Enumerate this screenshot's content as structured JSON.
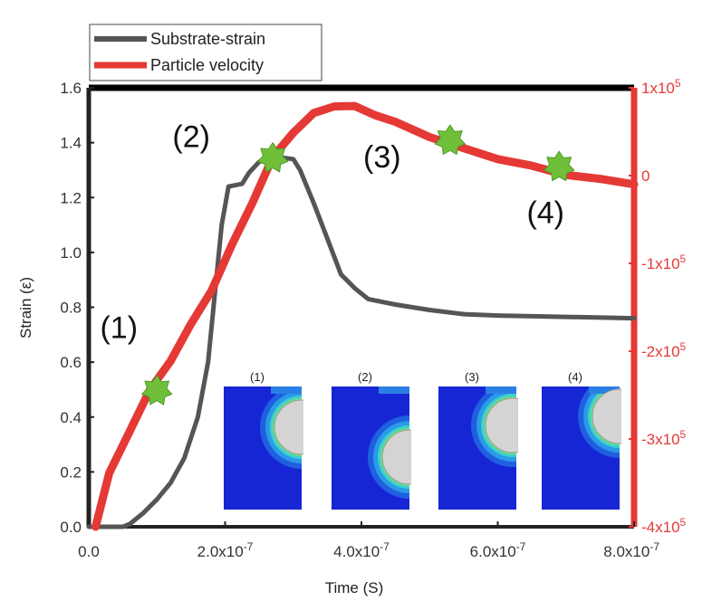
{
  "chart_data": {
    "type": "line",
    "xlabel": "Time (S)",
    "ylabel": "Strain (ε)",
    "xlim": [
      0,
      8e-07
    ],
    "ylim": [
      0,
      1.6
    ],
    "y2lim": [
      -400000,
      100000
    ],
    "x_ticks": [
      0,
      2e-07,
      4e-07,
      6e-07,
      8e-07
    ],
    "x_tick_labels": [
      {
        "mant": "0.0",
        "exp": ""
      },
      {
        "mant": "2.0x10",
        "exp": "-7"
      },
      {
        "mant": "4.0x10",
        "exp": "-7"
      },
      {
        "mant": "6.0x10",
        "exp": "-7"
      },
      {
        "mant": "8.0x10",
        "exp": "-7"
      }
    ],
    "y_ticks": [
      0,
      0.2,
      0.4,
      0.6,
      0.8,
      1.0,
      1.2,
      1.4,
      1.6
    ],
    "y_tick_labels": [
      "0.0",
      "0.2",
      "0.4",
      "0.6",
      "0.8",
      "1.0",
      "1.2",
      "1.4",
      "1.6"
    ],
    "y2_ticks": [
      100000,
      0,
      -100000,
      -200000,
      -300000,
      -400000
    ],
    "y2_tick_labels": [
      {
        "mant": "1x10",
        "exp": "5"
      },
      {
        "mant": "0",
        "exp": ""
      },
      {
        "mant": "-1x10",
        "exp": "5"
      },
      {
        "mant": "-2x10",
        "exp": "5"
      },
      {
        "mant": "-3x10",
        "exp": "5"
      },
      {
        "mant": "-4x10",
        "exp": "5"
      }
    ],
    "legend_position": "top-left",
    "series": [
      {
        "name": "Substrate-strain",
        "color": "#555555",
        "axis": "left",
        "x": [
          0,
          5e-08,
          6e-08,
          8e-08,
          1e-07,
          1.2e-07,
          1.4e-07,
          1.6e-07,
          1.75e-07,
          1.85e-07,
          1.95e-07,
          2.05e-07,
          2.25e-07,
          2.35e-07,
          2.5e-07,
          2.7e-07,
          3e-07,
          3.1e-07,
          3.3e-07,
          3.5e-07,
          3.7e-07,
          3.9e-07,
          4.1e-07,
          4.5e-07,
          5e-07,
          5.5e-07,
          6e-07,
          7e-07,
          8e-07
        ],
        "y": [
          0,
          0,
          0.01,
          0.05,
          0.1,
          0.16,
          0.25,
          0.4,
          0.6,
          0.85,
          1.1,
          1.24,
          1.25,
          1.29,
          1.33,
          1.35,
          1.34,
          1.3,
          1.18,
          1.05,
          0.92,
          0.87,
          0.83,
          0.81,
          0.79,
          0.775,
          0.77,
          0.765,
          0.76
        ]
      },
      {
        "name": "Particle velocity",
        "color": "#e53935",
        "axis": "right",
        "x": [
          1e-08,
          3e-08,
          6e-08,
          9e-08,
          1.2e-07,
          1.5e-07,
          1.8e-07,
          2.1e-07,
          2.4e-07,
          2.7e-07,
          3e-07,
          3.3e-07,
          3.6e-07,
          3.9e-07,
          4.2e-07,
          4.5e-07,
          5e-07,
          5.5e-07,
          6e-07,
          6.5e-07,
          7e-07,
          7.5e-07,
          8e-07
        ],
        "y": [
          -400000,
          -340000,
          -290000,
          -245000,
          -210000,
          -170000,
          -130000,
          -80000,
          -30000,
          20000,
          50000,
          70000,
          80000,
          78000,
          70000,
          60000,
          45000,
          30000,
          20000,
          10000,
          2000,
          -5000,
          -10000
        ]
      }
    ],
    "markers": [
      {
        "label": "(1)",
        "x": 1e-07,
        "y2": -245000
      },
      {
        "label": "(2)",
        "x": 2.7e-07,
        "y2": 20000
      },
      {
        "label": "(3)",
        "x": 5.3e-07,
        "y2": 40000
      },
      {
        "label": "(4)",
        "x": 6.9e-07,
        "y2": 10000
      }
    ],
    "inset_labels": [
      "(1)",
      "(2)",
      "(3)",
      "(4)"
    ]
  }
}
